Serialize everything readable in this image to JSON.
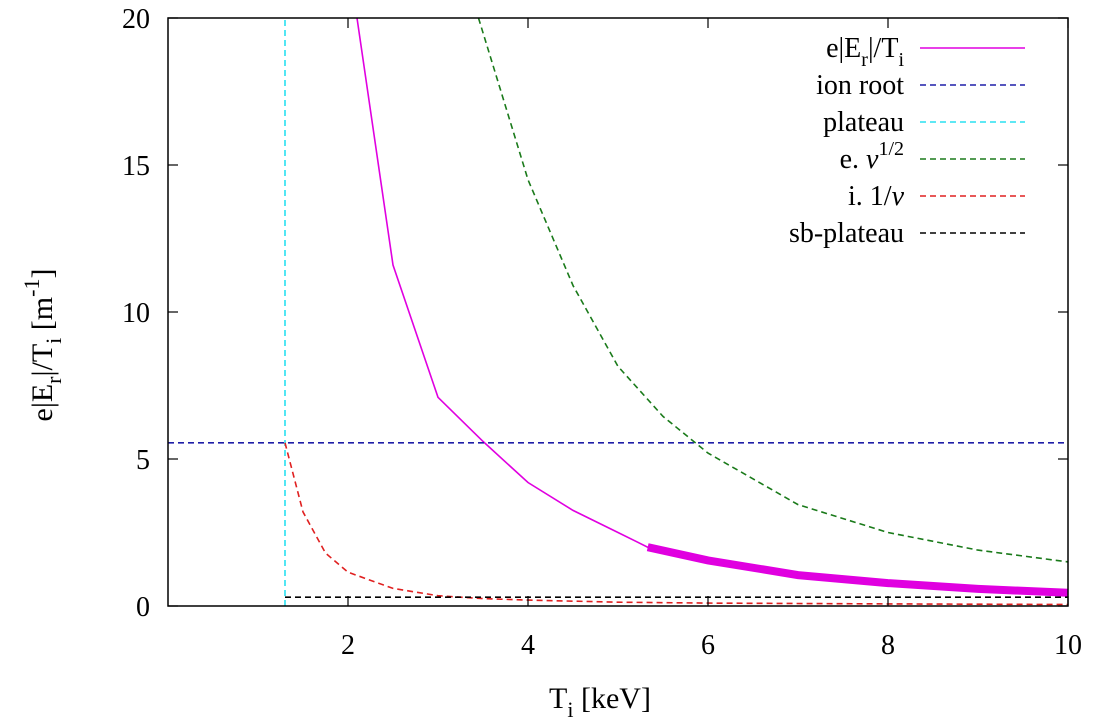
{
  "chart_data": {
    "type": "line",
    "x": {
      "label_main": "T",
      "label_sub": "i",
      "label_rest": " [keV]",
      "ticks": [
        2,
        4,
        6,
        8,
        10
      ],
      "tick_labels": [
        "2",
        "4",
        "6",
        "8",
        "10"
      ],
      "range": [
        0,
        10
      ]
    },
    "y": {
      "label_parts": [
        {
          "t": "e|E",
          "s": "main"
        },
        {
          "t": "r",
          "s": "sub"
        },
        {
          "t": "|/T",
          "s": "main"
        },
        {
          "t": "i",
          "s": "sub"
        },
        {
          "t": " [m",
          "s": "main"
        },
        {
          "t": "-1",
          "s": "sup"
        },
        {
          "t": "]",
          "s": "main"
        }
      ],
      "ticks": [
        0,
        5,
        10,
        15,
        20
      ],
      "tick_labels": [
        "0",
        "5",
        "10",
        "15",
        "20"
      ],
      "range": [
        0,
        20
      ]
    },
    "grid": false,
    "legend_position": "top-right",
    "series": [
      {
        "key": "er",
        "name_parts": [
          {
            "t": "e|E",
            "s": "main"
          },
          {
            "t": "r",
            "s": "sub"
          },
          {
            "t": "|/T",
            "s": "main"
          },
          {
            "t": "i",
            "s": "sub"
          }
        ],
        "color": "#e000e0",
        "dash": "solid",
        "x": [
          2.1,
          2.5,
          3.0,
          3.5,
          4.0,
          4.5,
          5.0,
          5.33,
          6.0,
          7.0,
          8.0,
          9.0,
          10.0
        ],
        "y": [
          20.0,
          11.6,
          7.1,
          5.6,
          4.2,
          3.25,
          2.5,
          2.0,
          1.55,
          1.05,
          0.78,
          0.58,
          0.45
        ],
        "highlight_from_x": 5.33
      },
      {
        "key": "ion_root",
        "name_parts": [
          {
            "t": "ion root",
            "s": "main"
          }
        ],
        "color": "#1e1ea8",
        "dash": "dashed",
        "x": [
          0,
          10
        ],
        "y": [
          5.55,
          5.55
        ]
      },
      {
        "key": "plateau",
        "name_parts": [
          {
            "t": "plateau",
            "s": "main"
          }
        ],
        "color": "#28e0f0",
        "dash": "dashed",
        "x": [
          1.3,
          1.3
        ],
        "y": [
          0.0,
          20.0
        ]
      },
      {
        "key": "e_nu",
        "name_parts": [
          {
            "t": "e. ",
            "s": "main"
          },
          {
            "t": "ν",
            "s": "italic"
          },
          {
            "t": "1/2",
            "s": "sup"
          }
        ],
        "color": "#1a7a1a",
        "dash": "dashed",
        "x": [
          3.45,
          4.0,
          4.5,
          5.0,
          5.5,
          6.0,
          7.0,
          8.0,
          9.0,
          10.0
        ],
        "y": [
          20.0,
          14.5,
          10.9,
          8.15,
          6.45,
          5.2,
          3.45,
          2.5,
          1.9,
          1.5
        ]
      },
      {
        "key": "i_nu",
        "name_parts": [
          {
            "t": "i. 1/",
            "s": "main"
          },
          {
            "t": "ν",
            "s": "italic"
          }
        ],
        "color": "#e02020",
        "dash": "dashed",
        "x": [
          1.3,
          1.5,
          1.75,
          2.0,
          2.5,
          3.0,
          3.5,
          4.0,
          5.0,
          6.0,
          8.0,
          10.0
        ],
        "y": [
          5.55,
          3.2,
          1.8,
          1.15,
          0.6,
          0.35,
          0.25,
          0.2,
          0.13,
          0.1,
          0.07,
          0.05
        ]
      },
      {
        "key": "sb_plateau",
        "name_parts": [
          {
            "t": "sb-plateau",
            "s": "main"
          }
        ],
        "color": "#000000",
        "dash": "dashed",
        "x": [
          1.3,
          10.0
        ],
        "y": [
          0.3,
          0.3
        ]
      }
    ]
  }
}
